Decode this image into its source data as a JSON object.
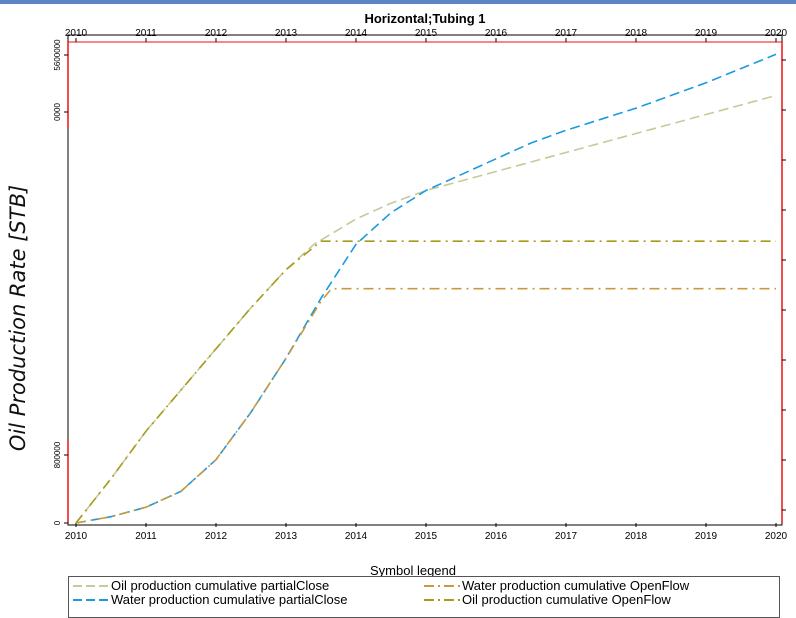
{
  "chart_data": {
    "type": "line",
    "title": "Horizontal;Tubing 1",
    "ylabel": "Oil Production Rate [STB]",
    "x_ticks_bottom": [
      "2010",
      "2011",
      "2012",
      "2013",
      "2014",
      "2015",
      "2016",
      "2017",
      "2018",
      "2019",
      "2020"
    ],
    "x_ticks_top": [
      "2010",
      "2011",
      "2012",
      "2013",
      "2014",
      "2015",
      "2016",
      "2017",
      "2018",
      "2019",
      "2020"
    ],
    "y_ticks_left_lower": [
      "0",
      "800000"
    ],
    "y_ticks_left_upper": [
      "0000",
      "5600000"
    ],
    "xlim": [
      2010,
      2020
    ],
    "series": [
      {
        "name": "Oil production cumulative partialClose",
        "color": "#c8c89a",
        "dash": "long-dash",
        "x": [
          2010.0,
          2010.5,
          2011.0,
          2011.5,
          2012.0,
          2012.5,
          2013.0,
          2013.4,
          2013.7,
          2014.0,
          2014.5,
          2015.0,
          2015.5,
          2016.0,
          2016.5,
          2017.0,
          2018.0,
          2019.0,
          2020.0
        ],
        "y": [
          0.0,
          0.14,
          0.29,
          0.42,
          0.55,
          0.68,
          0.8,
          0.88,
          0.92,
          0.96,
          1.01,
          1.05,
          1.08,
          1.11,
          1.14,
          1.17,
          1.23,
          1.29,
          1.35
        ]
      },
      {
        "name": "Water production cumulative partialClose",
        "color": "#1a9be0",
        "dash": "long-dash",
        "x": [
          2010.0,
          2010.5,
          2011.0,
          2011.5,
          2012.0,
          2012.5,
          2013.0,
          2013.5,
          2014.0,
          2014.5,
          2015.0,
          2015.5,
          2016.0,
          2016.5,
          2017.0,
          2018.0,
          2019.0,
          2020.0
        ],
        "y": [
          0.0,
          0.02,
          0.05,
          0.1,
          0.2,
          0.35,
          0.52,
          0.71,
          0.88,
          0.98,
          1.05,
          1.1,
          1.15,
          1.2,
          1.24,
          1.31,
          1.39,
          1.48
        ]
      },
      {
        "name": "Water production cumulative OpenFlow",
        "color": "#c89a3c",
        "dash": "dash-dot",
        "x": [
          2010.0,
          2010.5,
          2011.0,
          2011.5,
          2012.0,
          2012.5,
          2013.0,
          2013.5,
          2013.65,
          2020.0
        ],
        "y": [
          0.0,
          0.02,
          0.05,
          0.1,
          0.2,
          0.35,
          0.52,
          0.7,
          0.74,
          0.74
        ]
      },
      {
        "name": "Oil production cumulative OpenFlow",
        "color": "#a89a1a",
        "dash": "dash-dot",
        "x": [
          2010.0,
          2010.5,
          2011.0,
          2011.5,
          2012.0,
          2012.5,
          2013.0,
          2013.5,
          2020.0
        ],
        "y": [
          0.0,
          0.14,
          0.29,
          0.42,
          0.55,
          0.68,
          0.8,
          0.89,
          0.89
        ]
      }
    ],
    "legend": {
      "title": "Symbol legend",
      "placement": "bottom"
    }
  }
}
